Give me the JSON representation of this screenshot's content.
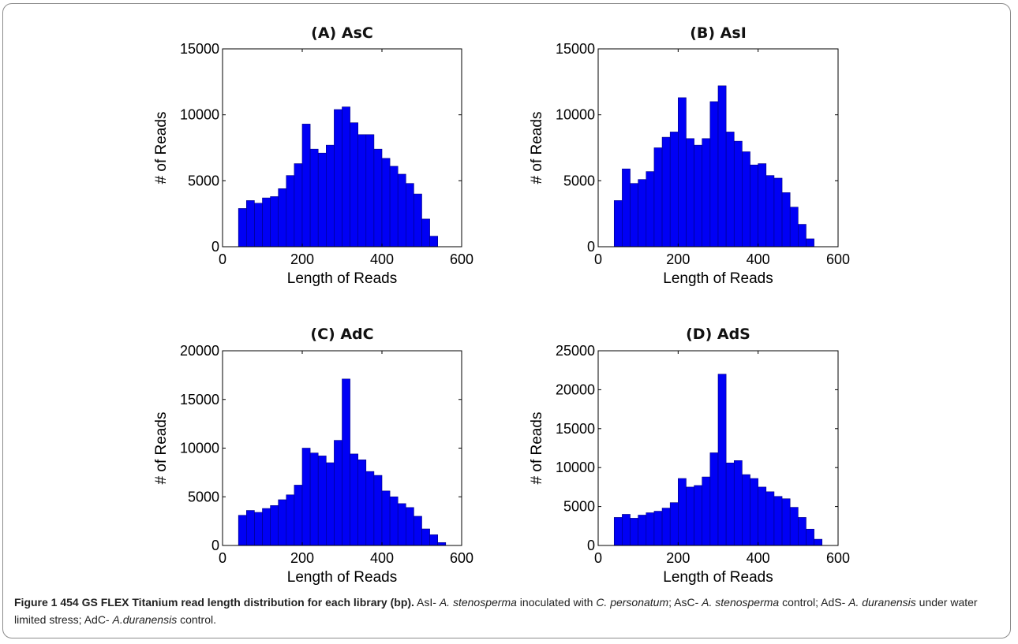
{
  "chart_data": [
    {
      "type": "bar",
      "title": "(A) AsC",
      "xlabel": "Length of Reads",
      "ylabel": "# of Reads",
      "xlim": [
        0,
        600
      ],
      "ylim": [
        0,
        15000
      ],
      "xticks": [
        0,
        200,
        400,
        600
      ],
      "yticks": [
        0,
        5000,
        10000,
        15000
      ],
      "bin_width": 20,
      "bin_centers": [
        50,
        70,
        90,
        110,
        130,
        150,
        170,
        190,
        210,
        230,
        250,
        270,
        290,
        310,
        330,
        350,
        370,
        390,
        410,
        430,
        450,
        470,
        490,
        510,
        530
      ],
      "values": [
        2900,
        3500,
        3300,
        3700,
        3800,
        4400,
        5400,
        6300,
        9300,
        7400,
        7100,
        7700,
        10400,
        10600,
        9400,
        8500,
        8500,
        7400,
        6700,
        6100,
        5500,
        4800,
        4000,
        2100,
        800
      ]
    },
    {
      "type": "bar",
      "title": "(B) AsI",
      "xlabel": "Length of Reads",
      "ylabel": "# of Reads",
      "xlim": [
        0,
        600
      ],
      "ylim": [
        0,
        15000
      ],
      "xticks": [
        0,
        200,
        400,
        600
      ],
      "yticks": [
        0,
        5000,
        10000,
        15000
      ],
      "bin_width": 20,
      "bin_centers": [
        50,
        70,
        90,
        110,
        130,
        150,
        170,
        190,
        210,
        230,
        250,
        270,
        290,
        310,
        330,
        350,
        370,
        390,
        410,
        430,
        450,
        470,
        490,
        510,
        530
      ],
      "values": [
        3500,
        5900,
        4800,
        5100,
        5700,
        7500,
        8300,
        8700,
        11300,
        8200,
        7700,
        8200,
        11000,
        12200,
        8700,
        8000,
        7200,
        6200,
        6300,
        5400,
        5200,
        4100,
        3000,
        1700,
        600
      ]
    },
    {
      "type": "bar",
      "title": "(C) AdC",
      "xlabel": "Length of Reads",
      "ylabel": "# of Reads",
      "xlim": [
        0,
        600
      ],
      "ylim": [
        0,
        20000
      ],
      "xticks": [
        0,
        200,
        400,
        600
      ],
      "yticks": [
        0,
        5000,
        10000,
        15000,
        20000
      ],
      "bin_width": 20,
      "bin_centers": [
        50,
        70,
        90,
        110,
        130,
        150,
        170,
        190,
        210,
        230,
        250,
        270,
        290,
        310,
        330,
        350,
        370,
        390,
        410,
        430,
        450,
        470,
        490,
        510,
        530,
        550
      ],
      "values": [
        3100,
        3600,
        3400,
        3800,
        4100,
        4700,
        5200,
        6200,
        10000,
        9500,
        9200,
        8500,
        10800,
        17100,
        9400,
        8800,
        7600,
        7200,
        5600,
        5000,
        4300,
        3900,
        3000,
        1700,
        1100,
        300
      ]
    },
    {
      "type": "bar",
      "title": "(D) AdS",
      "xlabel": "Length of Reads",
      "ylabel": "# of Reads",
      "xlim": [
        0,
        600
      ],
      "ylim": [
        0,
        25000
      ],
      "xticks": [
        0,
        200,
        400,
        600
      ],
      "yticks": [
        0,
        5000,
        10000,
        15000,
        20000,
        25000
      ],
      "bin_width": 20,
      "bin_centers": [
        50,
        70,
        90,
        110,
        130,
        150,
        170,
        190,
        210,
        230,
        250,
        270,
        290,
        310,
        330,
        350,
        370,
        390,
        410,
        430,
        450,
        470,
        490,
        510,
        530,
        550
      ],
      "values": [
        3600,
        4000,
        3500,
        3900,
        4200,
        4400,
        4800,
        5500,
        8600,
        7500,
        7700,
        8800,
        11900,
        22000,
        10600,
        10900,
        9100,
        8600,
        7500,
        6900,
        6300,
        6000,
        4900,
        3600,
        2100,
        800
      ]
    }
  ],
  "colors": {
    "bar_fill": "#0000f5",
    "bar_edge": "#000080",
    "frame": "#8c8c8c"
  },
  "caption": {
    "lead": "Figure 1 454 GS FLEX Titanium read length distribution for each library (bp).",
    "parts": [
      {
        "t": " AsI- ",
        "i": false
      },
      {
        "t": "A. stenosperma",
        "i": true
      },
      {
        "t": " inoculated with ",
        "i": false
      },
      {
        "t": "C. personatum",
        "i": true
      },
      {
        "t": "; AsC- ",
        "i": false
      },
      {
        "t": "A. stenosperma",
        "i": true
      },
      {
        "t": " control; AdS- ",
        "i": false
      },
      {
        "t": "A. duranensis",
        "i": true
      },
      {
        "t": " under water limited stress; AdC- ",
        "i": false
      },
      {
        "t": "A.duranensis",
        "i": true
      },
      {
        "t": " control.",
        "i": false
      }
    ]
  }
}
